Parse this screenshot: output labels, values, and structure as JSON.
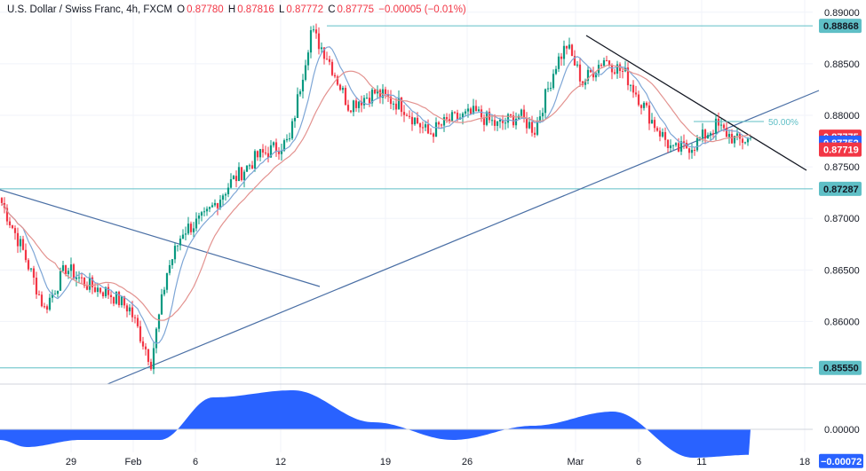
{
  "header": {
    "symbol": "U.S. Dollar / Swiss Franc, 4h, FXCM",
    "o_label": "O",
    "o": "0.87780",
    "h_label": "H",
    "h": "0.87816",
    "l_label": "L",
    "l": "0.87772",
    "c_label": "C",
    "c": "0.87775",
    "change": "−0.00005 (−0.01%)"
  },
  "colors": {
    "up": "#089981",
    "down": "#f23645",
    "ma_fast": "#7ea6d6",
    "ma_slow": "#e3928f",
    "level": "#5fbfc6",
    "trend": "#4a6fa5",
    "down_trend": "#131722",
    "oscillator": "#2962ff"
  },
  "chart_data": [
    {
      "type": "candlestick",
      "title": "",
      "y_axis": {
        "ylim": [
          0.8547,
          0.8905
        ],
        "ticks": [
          "0.89000",
          "0.88500",
          "0.88000",
          "0.87500",
          "0.87000",
          "0.86500",
          "0.86000"
        ]
      },
      "x_axis": {
        "ticks": [
          "29",
          "Feb",
          "6",
          "12",
          "19",
          "26",
          "Mar",
          "6",
          "11",
          "18"
        ]
      },
      "price_labels": [
        {
          "value": "0.88868",
          "kind": "level"
        },
        {
          "value": "0.87775",
          "kind": "last"
        },
        {
          "value": "0.87752",
          "kind": "ma_fast"
        },
        {
          "value": "0.87719",
          "kind": "ma_slow"
        },
        {
          "value": "0.87287",
          "kind": "level"
        },
        {
          "value": "0.85550",
          "kind": "level"
        }
      ],
      "horizontal_levels": [
        0.88868,
        0.87287,
        0.8555
      ],
      "fib_label": "50.00%",
      "fib_level": 0.8794,
      "anchors": [
        {
          "i": 0,
          "p": 0.8715
        },
        {
          "i": 8,
          "p": 0.8668
        },
        {
          "i": 16,
          "p": 0.8612
        },
        {
          "i": 24,
          "p": 0.8652
        },
        {
          "i": 32,
          "p": 0.8636
        },
        {
          "i": 40,
          "p": 0.8628
        },
        {
          "i": 48,
          "p": 0.8612
        },
        {
          "i": 56,
          "p": 0.8561
        },
        {
          "i": 62,
          "p": 0.8648
        },
        {
          "i": 68,
          "p": 0.8688
        },
        {
          "i": 76,
          "p": 0.87
        },
        {
          "i": 86,
          "p": 0.8735
        },
        {
          "i": 96,
          "p": 0.876
        },
        {
          "i": 108,
          "p": 0.8775
        },
        {
          "i": 116,
          "p": 0.8882
        },
        {
          "i": 122,
          "p": 0.8858
        },
        {
          "i": 130,
          "p": 0.881
        },
        {
          "i": 140,
          "p": 0.8822
        },
        {
          "i": 150,
          "p": 0.881
        },
        {
          "i": 160,
          "p": 0.8782
        },
        {
          "i": 168,
          "p": 0.8795
        },
        {
          "i": 178,
          "p": 0.8802
        },
        {
          "i": 186,
          "p": 0.879
        },
        {
          "i": 194,
          "p": 0.88
        },
        {
          "i": 200,
          "p": 0.8786
        },
        {
          "i": 208,
          "p": 0.885
        },
        {
          "i": 212,
          "p": 0.8868
        },
        {
          "i": 218,
          "p": 0.8832
        },
        {
          "i": 226,
          "p": 0.8855
        },
        {
          "i": 234,
          "p": 0.884
        },
        {
          "i": 244,
          "p": 0.8795
        },
        {
          "i": 252,
          "p": 0.8765
        },
        {
          "i": 260,
          "p": 0.8772
        },
        {
          "i": 268,
          "p": 0.879
        },
        {
          "i": 276,
          "p": 0.8775
        },
        {
          "i": 281,
          "p": 0.87775
        }
      ]
    },
    {
      "type": "area",
      "title": "",
      "ylim": [
        -0.0011,
        0.0011
      ],
      "ticks": [
        "0.00000"
      ],
      "last_label": "−0.00072"
    }
  ]
}
